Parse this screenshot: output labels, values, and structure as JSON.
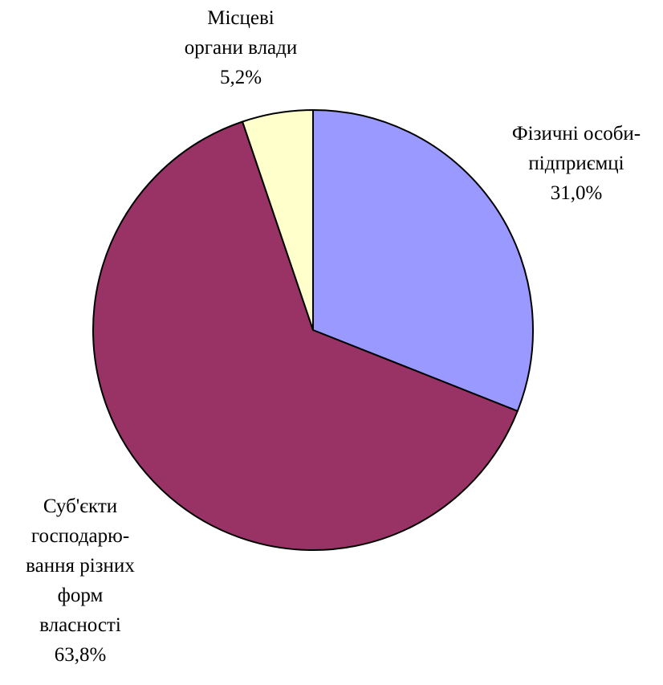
{
  "chart_data": {
    "type": "pie",
    "start_angle": "12 o'clock",
    "direction": "clockwise",
    "slices": [
      {
        "label_lines": [
          "Фізичні особи-",
          "підприємці"
        ],
        "value": 31.0,
        "value_label": "31,0%",
        "color": "#9999FF"
      },
      {
        "label_lines": [
          "Суб'єкти",
          "господарю-",
          "вання різних",
          "форм",
          "власності"
        ],
        "value": 63.8,
        "value_label": "63,8%",
        "color": "#993366"
      },
      {
        "label_lines": [
          "Місцеві",
          "органи влади"
        ],
        "value": 5.2,
        "value_label": "5,2%",
        "color": "#FFFFCC"
      }
    ]
  }
}
